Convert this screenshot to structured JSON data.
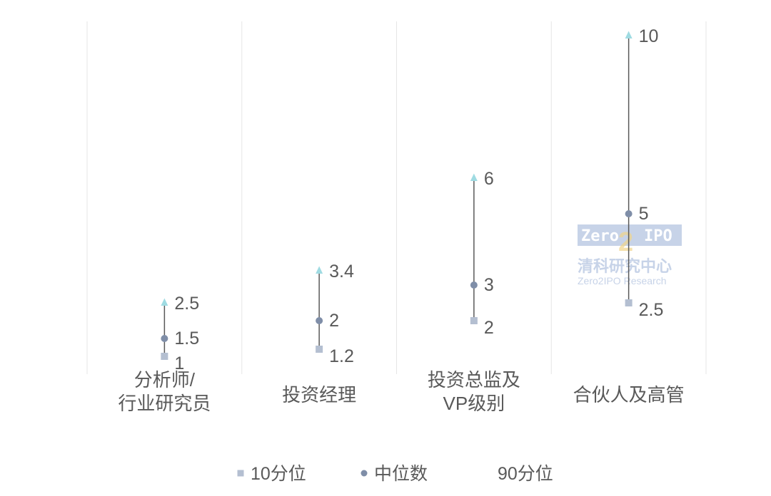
{
  "chart_data": {
    "type": "range",
    "categories": [
      "分析师/\n行业研究员",
      "投资经理",
      "投资总监及\nVP级别",
      "合伙人及高管"
    ],
    "series": [
      {
        "name": "10分位",
        "values": [
          1,
          1.2,
          2,
          2.5
        ],
        "color": "#b4bfd1",
        "marker": "square"
      },
      {
        "name": "中位数",
        "values": [
          1.5,
          2,
          3,
          5
        ],
        "color": "#7f8ea8",
        "marker": "circle"
      },
      {
        "name": "90分位",
        "values": [
          2.5,
          3.4,
          6,
          10
        ],
        "color": "#9fdbe2",
        "marker": "triangle"
      }
    ],
    "value_labels": [
      [
        "1",
        "1.2",
        "2",
        "2.5"
      ],
      [
        "1.5",
        "2",
        "3",
        "5"
      ],
      [
        "2.5",
        "3.4",
        "6",
        "10"
      ]
    ],
    "ylim": [
      -1,
      10
    ],
    "grid": "vertical category separators",
    "legend": "bottom",
    "range_line_color": "#595959"
  },
  "watermark": {
    "logo_text": "Zero",
    "logo_suffix": "IPO",
    "logo_digit": "2",
    "chinese": "清科研究中心",
    "english": "Zero2IPO Research"
  }
}
